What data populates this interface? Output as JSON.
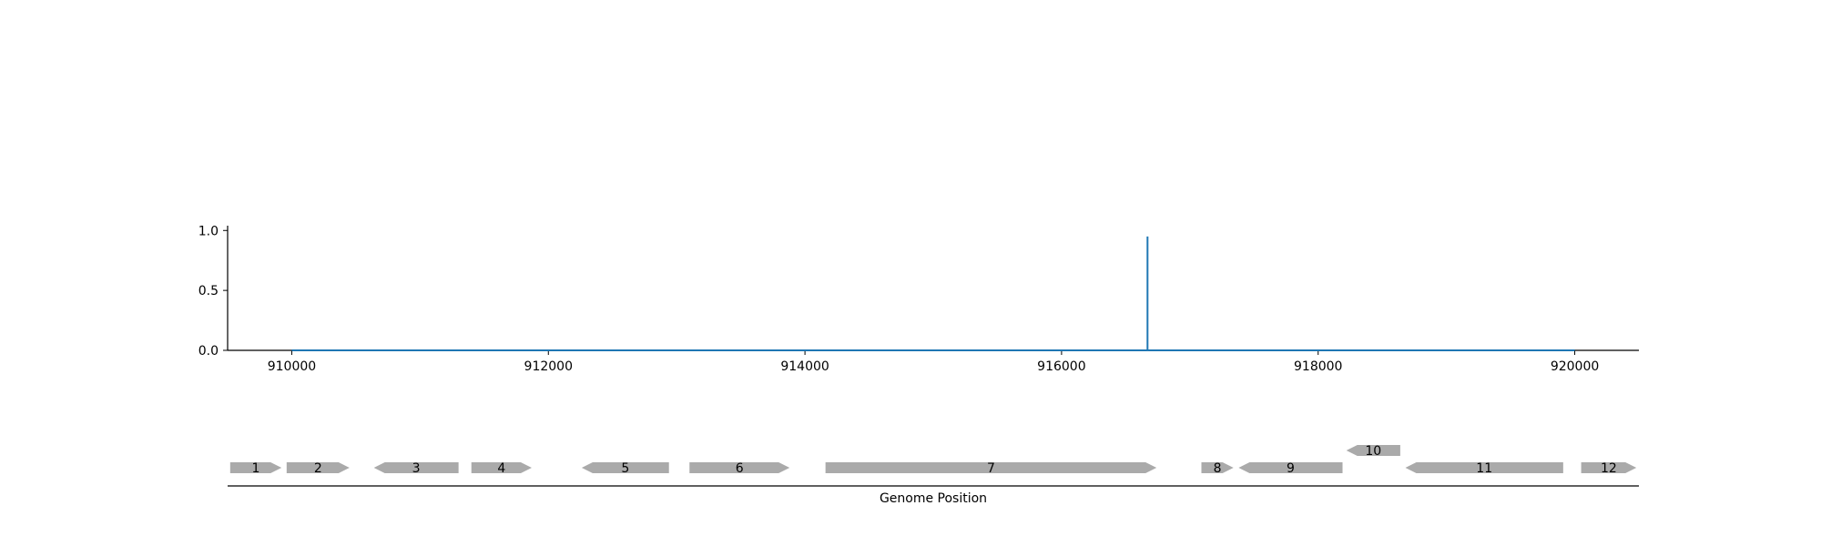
{
  "chart_data": {
    "type": "line",
    "xlabel": "Genome Position",
    "xlim": [
      909500,
      920500
    ],
    "ylim": [
      0,
      1.04
    ],
    "x_ticks": [
      910000,
      912000,
      914000,
      916000,
      918000,
      920000
    ],
    "y_ticks": [
      0.0,
      0.5,
      1.0
    ],
    "x_tick_labels": [
      "910000",
      "912000",
      "914000",
      "916000",
      "918000",
      "920000"
    ],
    "y_tick_labels": [
      "0.0",
      "0.5",
      "1.0"
    ],
    "series": [
      {
        "color": "#1f77b4",
        "x": [
          910000,
          916670,
          916670,
          916670,
          916670,
          920000
        ],
        "y": [
          0,
          0,
          0,
          0.95,
          0,
          0
        ]
      }
    ],
    "genes": [
      {
        "label": "1",
        "start": 909520,
        "end": 909920,
        "strand": "+",
        "row": 0
      },
      {
        "label": "2",
        "start": 909960,
        "end": 910450,
        "strand": "+",
        "row": 0
      },
      {
        "label": "3",
        "start": 910640,
        "end": 911300,
        "strand": "-",
        "row": 0
      },
      {
        "label": "4",
        "start": 911400,
        "end": 911870,
        "strand": "+",
        "row": 0
      },
      {
        "label": "5",
        "start": 912260,
        "end": 912940,
        "strand": "-",
        "row": 0
      },
      {
        "label": "6",
        "start": 913100,
        "end": 913880,
        "strand": "+",
        "row": 0
      },
      {
        "label": "7",
        "start": 914160,
        "end": 916740,
        "strand": "+",
        "row": 0
      },
      {
        "label": "8",
        "start": 917090,
        "end": 917340,
        "strand": "+",
        "row": 0
      },
      {
        "label": "9",
        "start": 917380,
        "end": 918190,
        "strand": "-",
        "row": 0
      },
      {
        "label": "10",
        "start": 918220,
        "end": 918640,
        "strand": "-",
        "row": 1
      },
      {
        "label": "11",
        "start": 918680,
        "end": 919910,
        "strand": "-",
        "row": 0
      },
      {
        "label": "12",
        "start": 920050,
        "end": 920480,
        "strand": "+",
        "row": 0
      }
    ],
    "colors": {
      "line": "#1f77b4",
      "gene": "#aaaaaa",
      "axis": "#000000"
    }
  }
}
